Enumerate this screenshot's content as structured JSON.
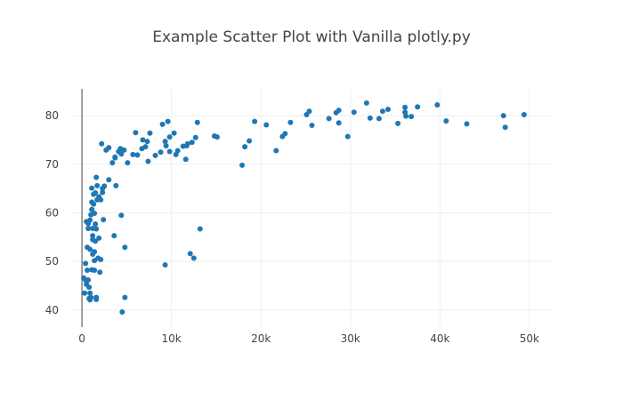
{
  "chart_data": {
    "type": "scatter",
    "title": "Example Scatter Plot with Vanilla plotly.py",
    "xlabel": "",
    "ylabel": "",
    "xlim": [
      -1200,
      52500
    ],
    "ylim": [
      36.5,
      85.5
    ],
    "grid": true,
    "x_ticks": [
      {
        "value": 0,
        "label": "0"
      },
      {
        "value": 10000,
        "label": "10k"
      },
      {
        "value": 20000,
        "label": "20k"
      },
      {
        "value": 30000,
        "label": "30k"
      },
      {
        "value": 40000,
        "label": "40k"
      },
      {
        "value": 50000,
        "label": "50k"
      }
    ],
    "y_ticks": [
      {
        "value": 40,
        "label": "40"
      },
      {
        "value": 50,
        "label": "50"
      },
      {
        "value": 60,
        "label": "60"
      },
      {
        "value": 70,
        "label": "70"
      },
      {
        "value": 80,
        "label": "80"
      }
    ],
    "colors": {
      "marker": "#1f77b4",
      "grid": "#eeeeee",
      "zeroline": "#444444",
      "text": "#444444"
    },
    "points": [
      [
        2200,
        74.2
      ],
      [
        2700,
        72.9
      ],
      [
        3000,
        73.4
      ],
      [
        3400,
        70.3
      ],
      [
        3700,
        71.5
      ],
      [
        4100,
        72.6
      ],
      [
        4400,
        72.1
      ],
      [
        4700,
        72.9
      ],
      [
        5100,
        70.3
      ],
      [
        5700,
        72.0
      ],
      [
        6200,
        71.9
      ],
      [
        6800,
        75.0
      ],
      [
        7100,
        73.6
      ],
      [
        7400,
        70.6
      ],
      [
        7300,
        74.7
      ],
      [
        7600,
        76.4
      ],
      [
        8200,
        71.8
      ],
      [
        8800,
        72.5
      ],
      [
        9400,
        73.8
      ],
      [
        9800,
        75.6
      ],
      [
        10300,
        76.4
      ],
      [
        10500,
        72.0
      ],
      [
        10700,
        72.8
      ],
      [
        11300,
        73.7
      ],
      [
        11800,
        74.2
      ],
      [
        12300,
        74.5
      ],
      [
        12700,
        75.5
      ],
      [
        12900,
        78.6
      ],
      [
        14800,
        75.8
      ],
      [
        15100,
        75.6
      ],
      [
        9000,
        78.2
      ],
      [
        9600,
        78.8
      ],
      [
        6000,
        76.5
      ],
      [
        11600,
        71.0
      ],
      [
        3700,
        71.3
      ],
      [
        4300,
        73.2
      ],
      [
        6700,
        73.2
      ],
      [
        9300,
        74.7
      ],
      [
        9800,
        72.6
      ],
      [
        11700,
        73.8
      ],
      [
        18200,
        73.6
      ],
      [
        18700,
        74.8
      ],
      [
        19300,
        78.8
      ],
      [
        20600,
        78.1
      ],
      [
        21700,
        72.8
      ],
      [
        22400,
        75.7
      ],
      [
        22700,
        76.3
      ],
      [
        23300,
        78.6
      ],
      [
        25100,
        80.2
      ],
      [
        25400,
        80.9
      ],
      [
        25700,
        78.0
      ],
      [
        27600,
        79.4
      ],
      [
        28400,
        80.6
      ],
      [
        28700,
        81.1
      ],
      [
        28700,
        78.5
      ],
      [
        29700,
        75.7
      ],
      [
        30400,
        80.7
      ],
      [
        31800,
        82.6
      ],
      [
        32200,
        79.5
      ],
      [
        33200,
        79.4
      ],
      [
        33600,
        80.9
      ],
      [
        34200,
        81.3
      ],
      [
        35300,
        78.4
      ],
      [
        36100,
        80.7
      ],
      [
        36100,
        81.7
      ],
      [
        36200,
        79.9
      ],
      [
        36800,
        79.8
      ],
      [
        37500,
        81.8
      ],
      [
        39700,
        82.2
      ],
      [
        40700,
        78.9
      ],
      [
        43000,
        78.3
      ],
      [
        47100,
        80.0
      ],
      [
        47300,
        77.6
      ],
      [
        49400,
        80.2
      ],
      [
        200,
        46.6
      ],
      [
        300,
        43.5
      ],
      [
        400,
        46.2
      ],
      [
        400,
        49.6
      ],
      [
        500,
        45.3
      ],
      [
        600,
        52.9
      ],
      [
        600,
        48.2
      ],
      [
        700,
        46.2
      ],
      [
        700,
        56.8
      ],
      [
        700,
        57.8
      ],
      [
        800,
        44.7
      ],
      [
        900,
        42.1
      ],
      [
        900,
        43.5
      ],
      [
        900,
        52.5
      ],
      [
        900,
        58.5
      ],
      [
        1000,
        42.6
      ],
      [
        1000,
        59.6
      ],
      [
        1100,
        60.7
      ],
      [
        1100,
        62.2
      ],
      [
        1100,
        65.1
      ],
      [
        1200,
        51.5
      ],
      [
        1200,
        54.5
      ],
      [
        1200,
        55.3
      ],
      [
        1300,
        61.8
      ],
      [
        1300,
        63.8
      ],
      [
        1400,
        48.2
      ],
      [
        1400,
        52.0
      ],
      [
        1400,
        59.9
      ],
      [
        1500,
        54.2
      ],
      [
        1500,
        64.1
      ],
      [
        1600,
        56.7
      ],
      [
        1600,
        42.6
      ],
      [
        1600,
        67.3
      ],
      [
        1700,
        65.6
      ],
      [
        1700,
        62.7
      ],
      [
        1800,
        50.7
      ],
      [
        1900,
        54.8
      ],
      [
        2000,
        47.8
      ],
      [
        2100,
        50.4
      ],
      [
        2100,
        62.7
      ],
      [
        2300,
        65.0
      ],
      [
        2400,
        58.6
      ],
      [
        2500,
        65.5
      ],
      [
        3000,
        66.8
      ],
      [
        3600,
        55.3
      ],
      [
        3800,
        65.6
      ],
      [
        4400,
        59.5
      ],
      [
        4500,
        39.6
      ],
      [
        4800,
        42.6
      ],
      [
        4800,
        52.9
      ],
      [
        9300,
        49.3
      ],
      [
        12100,
        51.6
      ],
      [
        12500,
        50.7
      ],
      [
        13200,
        56.7
      ],
      [
        17900,
        69.8
      ],
      [
        1600,
        42.2
      ],
      [
        800,
        42.4
      ],
      [
        1100,
        48.3
      ],
      [
        1500,
        57.7
      ],
      [
        500,
        58.2
      ],
      [
        1900,
        63.3
      ],
      [
        2300,
        64.2
      ],
      [
        1400,
        50.2
      ],
      [
        1200,
        56.8
      ]
    ]
  }
}
